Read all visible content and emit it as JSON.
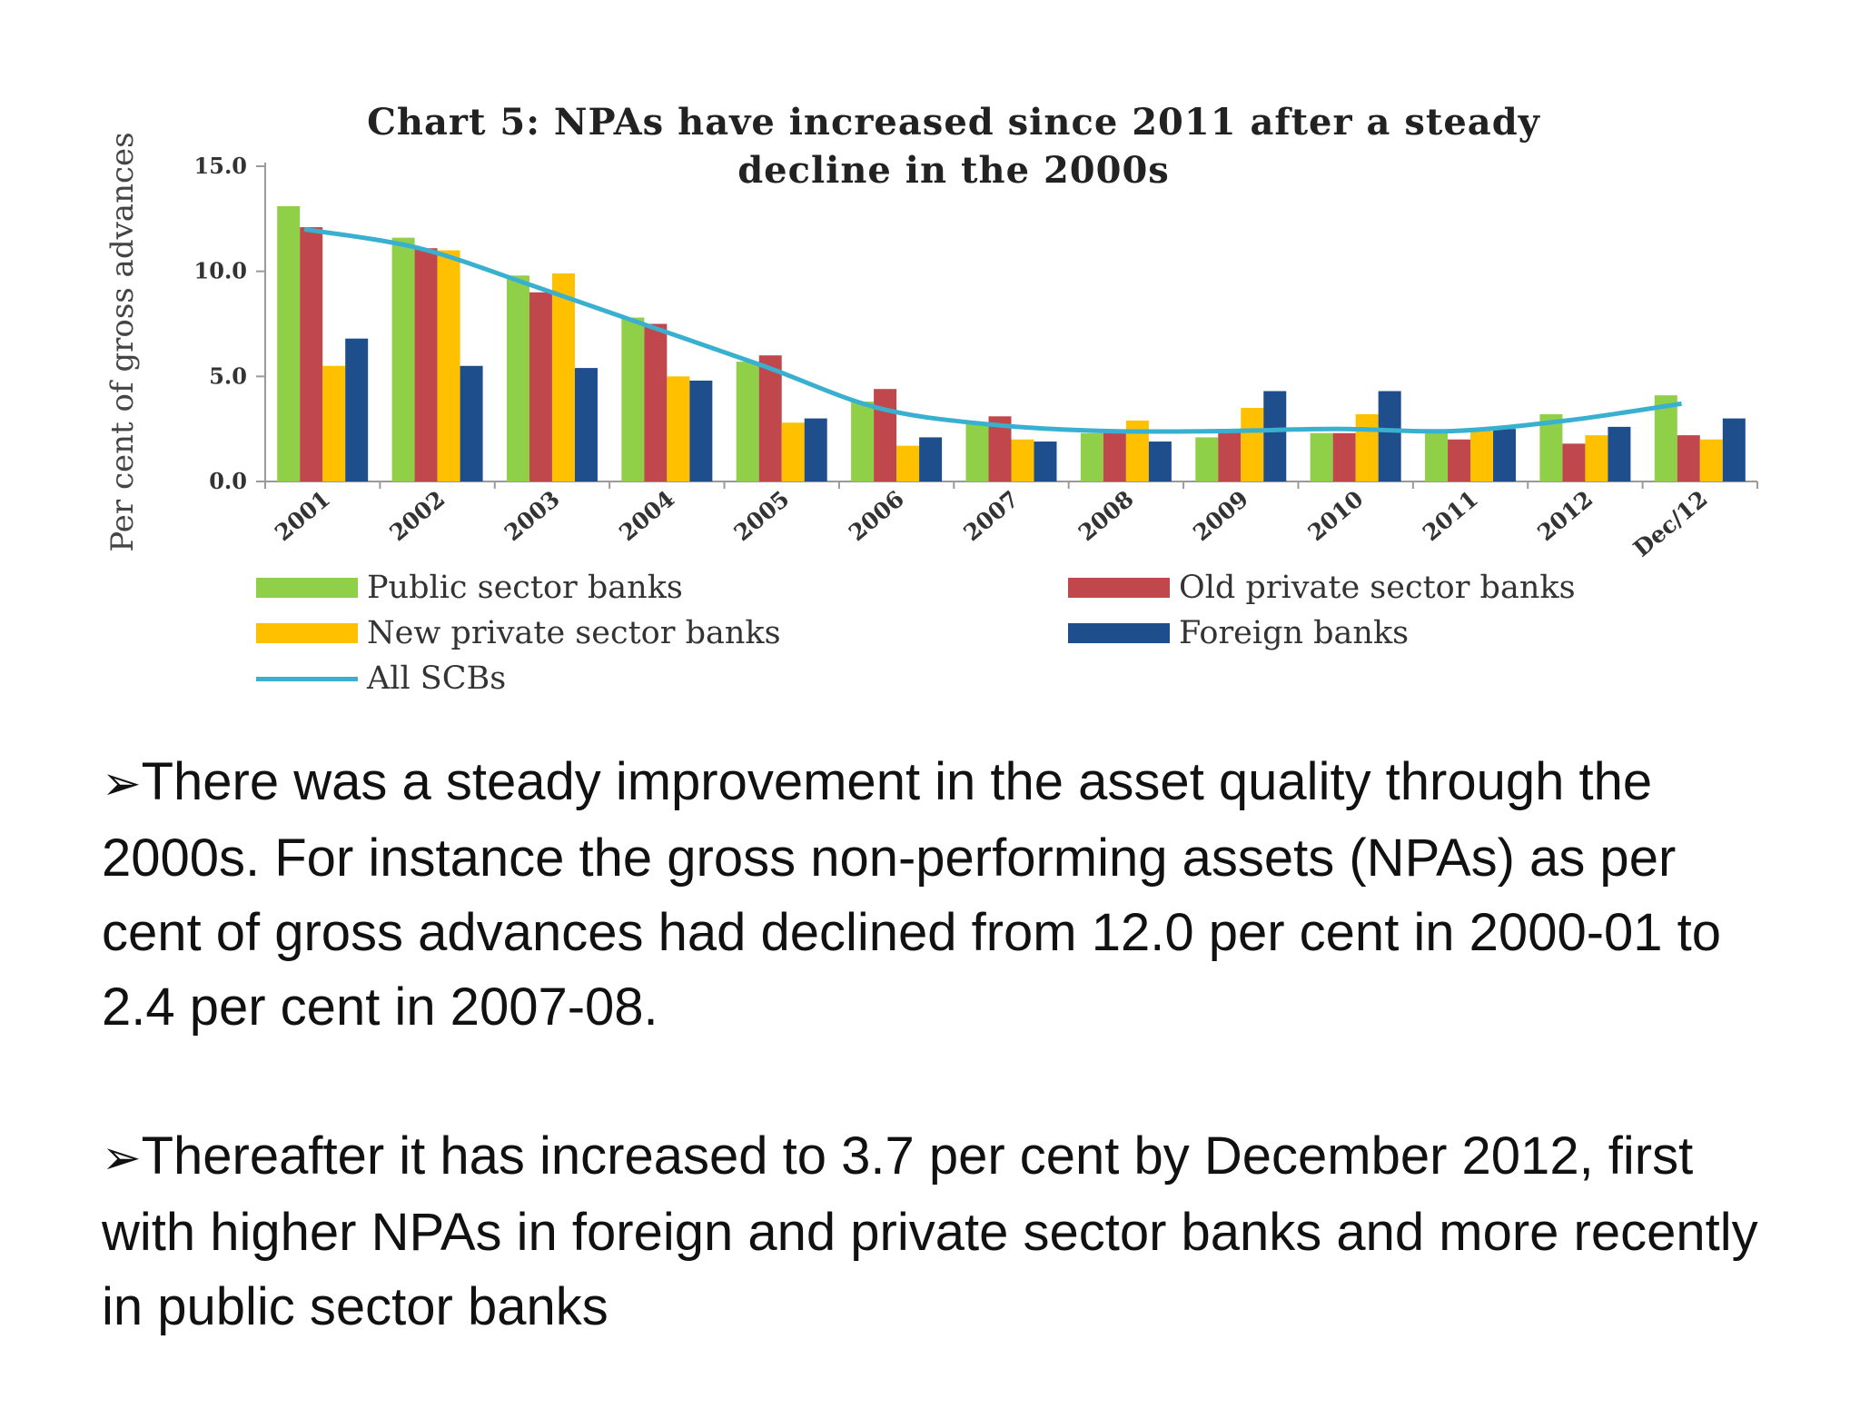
{
  "chart_data": {
    "type": "bar",
    "title": "Chart 5: NPAs have increased since 2011 after a steady decline in the 2000s",
    "ylabel": "Per cent of gross advances",
    "xlabel": "",
    "ylim": [
      0,
      15
    ],
    "yticks": [
      "0.0",
      "5.0",
      "10.0",
      "15.0"
    ],
    "grid": false,
    "legend_position": "bottom",
    "categories": [
      "2001",
      "2002",
      "2003",
      "2004",
      "2005",
      "2006",
      "2007",
      "2008",
      "2009",
      "2010",
      "2011",
      "2012",
      "Dec/12"
    ],
    "series": [
      {
        "name": "Public sector banks",
        "kind": "bar",
        "color": "#8fd048",
        "values": [
          13.1,
          11.6,
          9.8,
          7.8,
          5.7,
          3.8,
          2.8,
          2.3,
          2.1,
          2.3,
          2.4,
          3.2,
          4.1
        ]
      },
      {
        "name": "Old private sector banks",
        "kind": "bar",
        "color": "#c0474b",
        "values": [
          12.1,
          11.1,
          9.0,
          7.5,
          6.0,
          4.4,
          3.1,
          2.3,
          2.4,
          2.3,
          2.0,
          1.8,
          2.2
        ]
      },
      {
        "name": "New private sector banks",
        "kind": "bar",
        "color": "#ffc000",
        "values": [
          5.5,
          11.0,
          9.9,
          5.0,
          2.8,
          1.7,
          2.0,
          2.9,
          3.5,
          3.2,
          2.4,
          2.2,
          2.0
        ]
      },
      {
        "name": "Foreign banks",
        "kind": "bar",
        "color": "#1f4e8c",
        "values": [
          6.8,
          5.5,
          5.4,
          4.8,
          3.0,
          2.1,
          1.9,
          1.9,
          4.3,
          4.3,
          2.5,
          2.6,
          3.0
        ]
      },
      {
        "name": "All SCBs",
        "kind": "line",
        "color": "#3ab0d0",
        "values": [
          12.0,
          11.1,
          9.3,
          7.4,
          5.5,
          3.5,
          2.7,
          2.4,
          2.4,
          2.5,
          2.4,
          2.9,
          3.7
        ]
      }
    ]
  },
  "bullets": [
    "There was a steady improvement in the asset quality through the 2000s. For instance the gross non-performing assets (NPAs) as per cent of gross advances had declined from 12.0 per cent in 2000-01 to 2.4 per cent in 2007-08.",
    "Thereafter it has increased to 3.7 per cent by December 2012, first with higher NPAs in foreign and private sector banks and more recently in public sector banks"
  ],
  "bullet_glyph": "➢"
}
